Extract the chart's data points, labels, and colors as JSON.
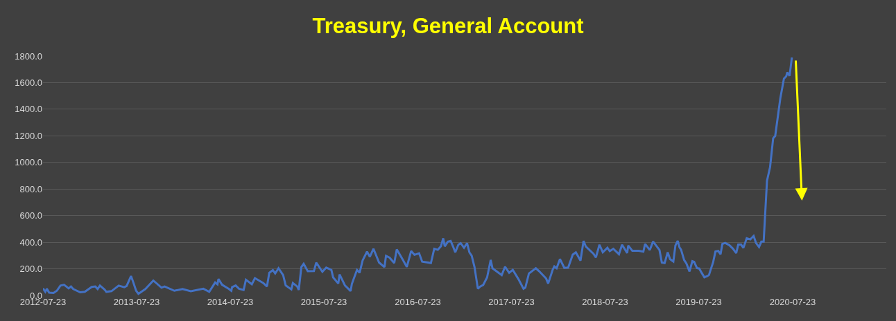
{
  "chart_data": {
    "type": "line",
    "title": "Treasury, General Account",
    "x": [
      "2012-07-23",
      "2012-08-01",
      "2012-08-07",
      "2012-08-16",
      "2012-09-02",
      "2012-09-15",
      "2012-09-29",
      "2012-10-13",
      "2012-10-31",
      "2012-11-09",
      "2012-11-18",
      "2012-12-15",
      "2013-01-02",
      "2013-01-29",
      "2013-02-12",
      "2013-02-21",
      "2013-03-02",
      "2013-03-20",
      "2013-03-27",
      "2013-04-16",
      "2013-05-14",
      "2013-06-05",
      "2013-06-14",
      "2013-07-01",
      "2013-07-07",
      "2013-07-21",
      "2013-07-30",
      "2013-08-26",
      "2013-09-26",
      "2013-10-28",
      "2013-11-09",
      "2013-12-17",
      "2014-01-18",
      "2014-02-19",
      "2014-04-09",
      "2014-05-02",
      "2014-05-25",
      "2014-06-03",
      "2014-06-07",
      "2014-06-21",
      "2014-07-18",
      "2014-07-27",
      "2014-07-30",
      "2014-08-13",
      "2014-08-26",
      "2014-09-13",
      "2014-09-22",
      "2014-10-15",
      "2014-10-27",
      "2014-11-29",
      "2014-12-13",
      "2014-12-22",
      "2015-01-05",
      "2015-01-14",
      "2015-01-27",
      "2015-02-14",
      "2015-02-24",
      "2015-03-18",
      "2015-03-24",
      "2015-04-10",
      "2015-04-16",
      "2015-04-26",
      "2015-05-05",
      "2015-05-21",
      "2015-06-14",
      "2015-06-23",
      "2015-07-17",
      "2015-08-01",
      "2015-08-21",
      "2015-08-28",
      "2015-09-17",
      "2015-09-22",
      "2015-10-13",
      "2015-11-04",
      "2015-11-09",
      "2015-11-29",
      "2015-12-09",
      "2015-12-21",
      "2016-01-07",
      "2016-01-18",
      "2016-02-01",
      "2016-02-23",
      "2016-03-15",
      "2016-03-21",
      "2016-04-04",
      "2016-04-22",
      "2016-05-02",
      "2016-05-26",
      "2016-06-10",
      "2016-06-27",
      "2016-07-10",
      "2016-07-28",
      "2016-08-09",
      "2016-09-01",
      "2016-09-12",
      "2016-09-25",
      "2016-10-09",
      "2016-10-21",
      "2016-10-30",
      "2016-11-05",
      "2016-11-17",
      "2016-11-28",
      "2016-12-07",
      "2016-12-16",
      "2016-12-28",
      "2017-01-06",
      "2017-01-19",
      "2017-01-31",
      "2017-02-09",
      "2017-02-18",
      "2017-03-01",
      "2017-03-14",
      "2017-03-23",
      "2017-04-04",
      "2017-04-19",
      "2017-05-03",
      "2017-05-10",
      "2017-06-15",
      "2017-06-28",
      "2017-07-14",
      "2017-07-28",
      "2017-08-19",
      "2017-09-08",
      "2017-09-15",
      "2017-09-29",
      "2017-10-26",
      "2017-11-08",
      "2017-12-05",
      "2017-12-13",
      "2017-12-31",
      "2018-01-06",
      "2018-01-15",
      "2018-01-28",
      "2018-02-14",
      "2018-03-01",
      "2018-03-19",
      "2018-03-31",
      "2018-04-18",
      "2018-04-30",
      "2018-05-09",
      "2018-06-08",
      "2018-06-17",
      "2018-07-01",
      "2018-07-14",
      "2018-08-01",
      "2018-08-10",
      "2018-08-24",
      "2018-09-15",
      "2018-09-27",
      "2018-10-17",
      "2018-10-21",
      "2018-11-06",
      "2018-12-01",
      "2018-12-19",
      "2018-12-26",
      "2019-01-13",
      "2019-01-26",
      "2019-02-20",
      "2019-03-01",
      "2019-03-12",
      "2019-03-24",
      "2019-04-02",
      "2019-04-15",
      "2019-04-23",
      "2019-05-02",
      "2019-05-09",
      "2019-05-15",
      "2019-05-27",
      "2019-06-05",
      "2019-06-17",
      "2019-06-28",
      "2019-07-05",
      "2019-07-16",
      "2019-07-25",
      "2019-08-03",
      "2019-08-14",
      "2019-08-25",
      "2019-09-01",
      "2019-09-08",
      "2019-09-17",
      "2019-09-26",
      "2019-10-07",
      "2019-10-16",
      "2019-10-23",
      "2019-11-03",
      "2019-11-19",
      "2019-12-03",
      "2019-12-16",
      "2019-12-24",
      "2020-01-04",
      "2020-01-13",
      "2020-01-26",
      "2020-02-09",
      "2020-02-22",
      "2020-03-02",
      "2020-03-14",
      "2020-03-23",
      "2020-04-01",
      "2020-04-14",
      "2020-04-26",
      "2020-05-08",
      "2020-05-16",
      "2020-06-05",
      "2020-06-19",
      "2020-06-28",
      "2020-07-02",
      "2020-07-11",
      "2020-07-20"
    ],
    "series": [
      {
        "color": "#4472c4",
        "values": [
          53,
          27,
          50,
          21,
          18,
          35,
          74,
          80,
          53,
          67,
          48,
          23,
          27,
          64,
          67,
          48,
          74,
          44,
          27,
          32,
          74,
          62,
          71,
          145,
          115,
          35,
          12,
          48,
          112,
          58,
          67,
          35,
          48,
          32,
          50,
          27,
          97,
          83,
          124,
          80,
          48,
          35,
          62,
          75,
          50,
          41,
          118,
          84,
          130,
          93,
          67,
          170,
          190,
          165,
          204,
          153,
          75,
          45,
          93,
          67,
          41,
          213,
          238,
          182,
          183,
          247,
          178,
          209,
          192,
          135,
          89,
          158,
          75,
          33,
          87,
          192,
          170,
          264,
          329,
          290,
          351,
          247,
          213,
          298,
          284,
          243,
          346,
          266,
          214,
          334,
          305,
          317,
          254,
          247,
          243,
          351,
          343,
          369,
          429,
          369,
          404,
          410,
          369,
          324,
          381,
          393,
          358,
          393,
          324,
          298,
          213,
          50,
          67,
          79,
          135,
          267,
          204,
          153,
          216,
          170,
          192,
          123,
          50,
          58,
          165,
          204,
          182,
          127,
          89,
          195,
          218,
          204,
          273,
          207,
          209,
          307,
          324,
          261,
          410,
          367,
          312,
          285,
          381,
          324,
          358,
          333,
          350,
          310,
          381,
          319,
          375,
          336,
          336,
          329,
          387,
          341,
          405,
          341,
          247,
          243,
          324,
          273,
          255,
          375,
          410,
          361,
          344,
          266,
          240,
          180,
          257,
          252,
          206,
          202,
          171,
          136,
          145,
          154,
          197,
          249,
          330,
          335,
          309,
          387,
          395,
          378,
          352,
          318,
          383,
          383,
          357,
          430,
          421,
          447,
          395,
          364,
          404,
          404,
          862,
          965,
          1181,
          1199,
          1483,
          1630,
          1648,
          1677,
          1651,
          1789
        ]
      }
    ],
    "xlim": [
      "2012-07-23",
      "2021-07-23"
    ],
    "xticks": [
      "2012-07-23",
      "2013-07-23",
      "2014-07-23",
      "2015-07-23",
      "2016-07-23",
      "2017-07-23",
      "2018-07-23",
      "2019-07-23",
      "2020-07-23"
    ],
    "ylim": [
      0,
      1800
    ],
    "yticks": [
      {
        "value": 0,
        "label": "0.0"
      },
      {
        "value": 200,
        "label": "200.0"
      },
      {
        "value": 400,
        "label": "400.0"
      },
      {
        "value": 600,
        "label": "600.0"
      },
      {
        "value": 800,
        "label": "800.0"
      },
      {
        "value": 1000,
        "label": "1000.0"
      },
      {
        "value": 1200,
        "label": "1200.0"
      },
      {
        "value": 1400,
        "label": "1400.0"
      },
      {
        "value": 1600,
        "label": "1600.0"
      },
      {
        "value": 1800,
        "label": "1800.0"
      }
    ],
    "grid": "y",
    "marker": "none",
    "line_style": "solid"
  }
}
